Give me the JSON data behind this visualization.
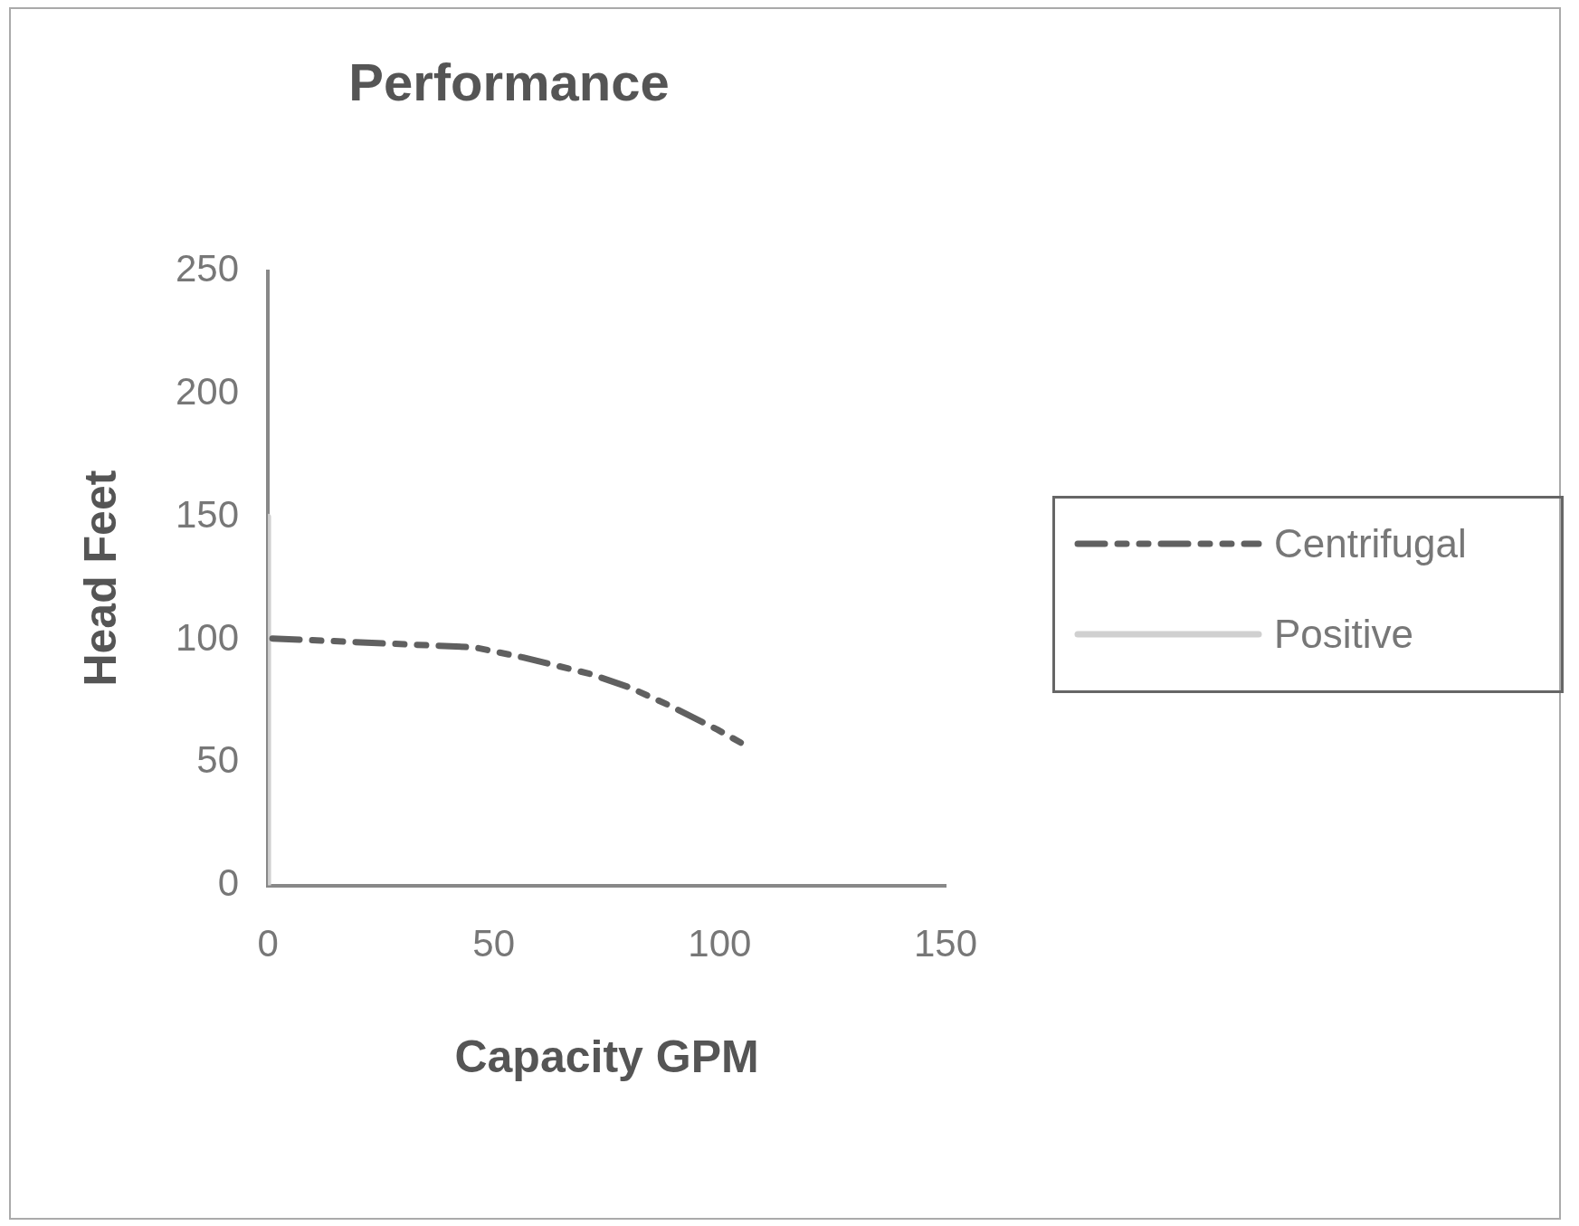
{
  "chart_data": {
    "type": "line",
    "title": "Performance",
    "xlabel": "Capacity GPM",
    "ylabel": "Head Feet",
    "xlim": [
      0,
      150
    ],
    "xticks": [
      0,
      50,
      100,
      150
    ],
    "ylim": [
      0,
      250
    ],
    "yticks": [
      0,
      50,
      100,
      150,
      200,
      250
    ],
    "series": [
      {
        "name": "Centrifugal",
        "color": "#606060",
        "line_style": "dashed",
        "x": [
          1,
          45.7,
          56.5,
          71.5,
          80,
          88.7,
          99.5,
          106.5
        ],
        "values": [
          100.5,
          96.9,
          92.8,
          86,
          80.6,
          73.4,
          63.4,
          56.2
        ]
      },
      {
        "name": "Positive",
        "color": "#d0d0d0",
        "line_style": "solid",
        "x": [
          0,
          0
        ],
        "values": [
          150,
          0
        ]
      }
    ],
    "legend": "right",
    "grid": false,
    "marker": "none"
  }
}
